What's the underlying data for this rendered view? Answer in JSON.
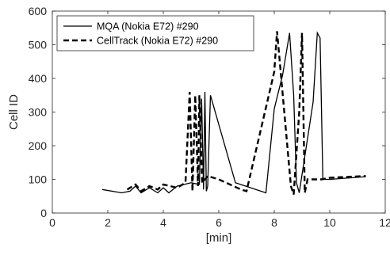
{
  "chart_data": {
    "type": "line",
    "xlabel": "[min]",
    "ylabel": "Cell ID",
    "xlim": [
      0,
      12
    ],
    "ylim": [
      0,
      600
    ],
    "xticks": [
      0,
      2,
      4,
      6,
      8,
      10,
      12
    ],
    "yticks": [
      0,
      100,
      200,
      300,
      400,
      500,
      600
    ],
    "xtick_labels": [
      "0",
      "2",
      "4",
      "6",
      "8",
      "10",
      "12"
    ],
    "ytick_labels": [
      "0",
      "100",
      "200",
      "300",
      "400",
      "500",
      "600"
    ],
    "grid": false,
    "legend_placement": "top-left",
    "series": [
      {
        "name": "MQA (Nokia E72) #290",
        "style": "solid",
        "color": "#000000",
        "x": [
          1.8,
          2.5,
          2.8,
          3.0,
          3.2,
          3.5,
          3.8,
          4.0,
          4.2,
          4.5,
          5.0,
          5.3,
          5.38,
          5.45,
          5.5,
          5.55,
          5.6,
          5.7,
          6.6,
          7.7,
          8.0,
          8.3,
          8.55,
          8.7,
          8.8,
          8.9,
          9.4,
          9.55,
          9.65,
          9.75,
          10.0,
          11.3
        ],
        "y": [
          70,
          60,
          65,
          80,
          60,
          75,
          60,
          75,
          60,
          80,
          90,
          85,
          340,
          70,
          360,
          65,
          80,
          350,
          90,
          60,
          310,
          410,
          535,
          350,
          90,
          60,
          330,
          535,
          520,
          100,
          100,
          108
        ]
      },
      {
        "name": "CellTrack (Nokia E72) #290",
        "style": "dashed",
        "color": "#000000",
        "x": [
          2.7,
          3.0,
          3.2,
          3.5,
          3.8,
          4.0,
          4.5,
          4.8,
          4.95,
          5.05,
          5.15,
          5.25,
          5.3,
          5.4,
          5.6,
          6.0,
          6.8,
          7.0,
          8.0,
          8.1,
          8.6,
          8.7,
          8.9,
          9.0,
          9.1,
          9.2,
          9.6,
          9.7,
          10.0,
          11.3
        ],
        "y": [
          70,
          85,
          65,
          80,
          70,
          85,
          75,
          90,
          360,
          65,
          350,
          80,
          350,
          90,
          110,
          100,
          70,
          65,
          420,
          540,
          80,
          55,
          300,
          535,
          60,
          100,
          100,
          100,
          105,
          110
        ]
      }
    ]
  }
}
